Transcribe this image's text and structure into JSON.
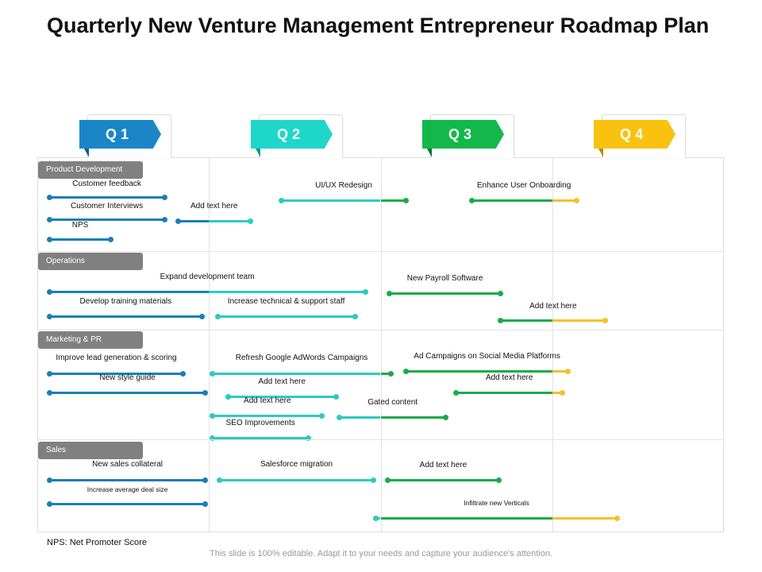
{
  "title": "Quarterly New Venture Management Entrepreneur Roadmap Plan",
  "quarters": [
    {
      "label": "Q 1",
      "color": "#1a86c8",
      "fold": "#0e5f91"
    },
    {
      "label": "Q 2",
      "color": "#1ed6c9",
      "fold": "#0f9a90"
    },
    {
      "label": "Q 3",
      "color": "#12b84a",
      "fold": "#0b7a31"
    },
    {
      "label": "Q 4",
      "color": "#f8c20e",
      "fold": "#b58c05"
    }
  ],
  "bar_colors": [
    "#1a7fb8",
    "#2ccbc0",
    "#1aab4a",
    "#f4c22a"
  ],
  "groups": [
    {
      "label": "Product Development",
      "tasks": [
        {
          "label": "Customer feedback",
          "start_q": 0.07,
          "end_q": 0.74
        },
        {
          "label": "Customer Interviews",
          "start_q": 0.07,
          "end_q": 0.74
        },
        {
          "label": "Add text here",
          "start_q": 0.82,
          "end_q": 1.24
        },
        {
          "label": "NPS",
          "start_q": 0.07,
          "end_q": 0.43
        },
        {
          "label": "UI/UX  Redesign",
          "start_q": 1.42,
          "end_q": 2.15
        },
        {
          "label": "Enhance User Onboarding",
          "start_q": 2.53,
          "end_q": 3.14
        }
      ]
    },
    {
      "label": "Operations",
      "tasks": [
        {
          "label": "Expand development team",
          "start_q": 0.07,
          "end_q": 1.91
        },
        {
          "label": "Develop training materials",
          "start_q": 0.07,
          "end_q": 0.96
        },
        {
          "label": "Increase technical & support staff",
          "start_q": 1.05,
          "end_q": 1.85
        },
        {
          "label": "New Payroll Software",
          "start_q": 2.05,
          "end_q": 2.7
        },
        {
          "label": "Add text here",
          "start_q": 2.7,
          "end_q": 3.31
        }
      ]
    },
    {
      "label": "Marketing & PR",
      "tasks": [
        {
          "label": "Improve lead generation & scoring",
          "start_q": 0.07,
          "end_q": 0.85
        },
        {
          "label": "New style guide",
          "start_q": 0.07,
          "end_q": 0.98
        },
        {
          "label": "Refresh Google AdWords Campaigns",
          "start_q": 1.02,
          "end_q": 2.06
        },
        {
          "label": "Add text here",
          "start_q": 1.11,
          "end_q": 1.74
        },
        {
          "label": "Add text here",
          "start_q": 1.02,
          "end_q": 1.66
        },
        {
          "label": "SEO  Improvements",
          "start_q": 1.02,
          "end_q": 1.58
        },
        {
          "label": "Gated content",
          "start_q": 1.76,
          "end_q": 2.38
        },
        {
          "label": "Ad Campaigns on Social Media Platforms",
          "start_q": 2.15,
          "end_q": 3.09
        },
        {
          "label": "Add text here",
          "start_q": 2.44,
          "end_q": 3.06
        }
      ]
    },
    {
      "label": "Sales",
      "tasks": [
        {
          "label": "New sales collateral",
          "start_q": 0.07,
          "end_q": 0.98
        },
        {
          "label": "Increase average deal size",
          "start_q": 0.07,
          "end_q": 0.98
        },
        {
          "label": "Salesforce migration",
          "start_q": 1.06,
          "end_q": 1.96
        },
        {
          "label": "Add text here",
          "start_q": 2.04,
          "end_q": 2.69
        },
        {
          "label": "Infiltrate new Verticals",
          "start_q": 1.97,
          "end_q": 3.38
        }
      ]
    }
  ],
  "footnote": "NPS: Net Promoter Score",
  "caption": "This slide is 100% editable. Adapt it to your needs and capture your audience's attention."
}
